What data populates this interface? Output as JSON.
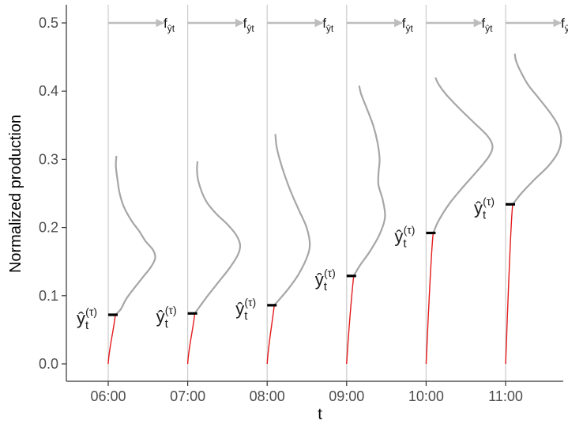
{
  "chart_data": {
    "type": "line",
    "xlabel": "t",
    "ylabel": "Normalized production",
    "xticks": [
      "06:00",
      "07:00",
      "08:00",
      "09:00",
      "10:00",
      "11:00"
    ],
    "yticks": [
      "0.0",
      "0.1",
      "0.2",
      "0.3",
      "0.4",
      "0.5"
    ],
    "ylim": [
      -0.02,
      0.53
    ],
    "grid": false,
    "density_label": {
      "f": "f",
      "sub": "ŷt"
    },
    "point_label": {
      "base": "ŷ",
      "sub": "t",
      "sup": "(τ)"
    },
    "colors": {
      "density": "#a6a6a6",
      "path": "#e41a1c",
      "marker": "#000000",
      "vline": "#cccccc",
      "arrow": "#bdbdbd"
    },
    "panels": [
      {
        "time": "06:00",
        "point": 0.072,
        "density": [
          [
            0.072,
            0.0
          ],
          [
            0.08,
            0.05
          ],
          [
            0.095,
            0.1
          ],
          [
            0.112,
            0.18
          ],
          [
            0.128,
            0.26
          ],
          [
            0.142,
            0.33
          ],
          [
            0.155,
            0.37
          ],
          [
            0.167,
            0.35
          ],
          [
            0.18,
            0.28
          ],
          [
            0.195,
            0.22
          ],
          [
            0.21,
            0.15
          ],
          [
            0.23,
            0.08
          ],
          [
            0.25,
            0.04
          ],
          [
            0.27,
            0.02
          ],
          [
            0.29,
            0.005
          ],
          [
            0.305,
            0.01
          ]
        ]
      },
      {
        "time": "07:00",
        "point": 0.074,
        "density": [
          [
            0.074,
            0.0
          ],
          [
            0.085,
            0.05
          ],
          [
            0.1,
            0.12
          ],
          [
            0.12,
            0.22
          ],
          [
            0.14,
            0.32
          ],
          [
            0.16,
            0.4
          ],
          [
            0.175,
            0.42
          ],
          [
            0.19,
            0.38
          ],
          [
            0.205,
            0.3
          ],
          [
            0.22,
            0.2
          ],
          [
            0.235,
            0.12
          ],
          [
            0.25,
            0.07
          ],
          [
            0.27,
            0.03
          ],
          [
            0.285,
            0.02
          ],
          [
            0.297,
            0.025
          ]
        ]
      },
      {
        "time": "08:00",
        "point": 0.086,
        "density": [
          [
            0.086,
            0.0
          ],
          [
            0.095,
            0.05
          ],
          [
            0.11,
            0.13
          ],
          [
            0.13,
            0.22
          ],
          [
            0.155,
            0.3
          ],
          [
            0.175,
            0.33
          ],
          [
            0.2,
            0.3
          ],
          [
            0.225,
            0.23
          ],
          [
            0.25,
            0.16
          ],
          [
            0.275,
            0.1
          ],
          [
            0.3,
            0.05
          ],
          [
            0.32,
            0.02
          ],
          [
            0.337,
            0.01
          ]
        ]
      },
      {
        "time": "09:00",
        "point": 0.129,
        "density": [
          [
            0.129,
            0.0
          ],
          [
            0.145,
            0.06
          ],
          [
            0.165,
            0.15
          ],
          [
            0.19,
            0.24
          ],
          [
            0.215,
            0.29
          ],
          [
            0.24,
            0.27
          ],
          [
            0.262,
            0.23
          ],
          [
            0.28,
            0.23
          ],
          [
            0.3,
            0.24
          ],
          [
            0.325,
            0.22
          ],
          [
            0.35,
            0.18
          ],
          [
            0.375,
            0.12
          ],
          [
            0.395,
            0.07
          ],
          [
            0.408,
            0.05
          ]
        ]
      },
      {
        "time": "10:00",
        "point": 0.192,
        "density": [
          [
            0.192,
            0.0
          ],
          [
            0.21,
            0.05
          ],
          [
            0.235,
            0.15
          ],
          [
            0.26,
            0.28
          ],
          [
            0.285,
            0.42
          ],
          [
            0.305,
            0.52
          ],
          [
            0.32,
            0.55
          ],
          [
            0.335,
            0.5
          ],
          [
            0.355,
            0.37
          ],
          [
            0.375,
            0.24
          ],
          [
            0.395,
            0.12
          ],
          [
            0.41,
            0.05
          ],
          [
            0.42,
            0.02
          ]
        ]
      },
      {
        "time": "11:00",
        "point": 0.234,
        "density": [
          [
            0.234,
            0.0
          ],
          [
            0.25,
            0.08
          ],
          [
            0.27,
            0.2
          ],
          [
            0.29,
            0.33
          ],
          [
            0.31,
            0.42
          ],
          [
            0.33,
            0.45
          ],
          [
            0.35,
            0.42
          ],
          [
            0.37,
            0.34
          ],
          [
            0.39,
            0.24
          ],
          [
            0.41,
            0.14
          ],
          [
            0.43,
            0.07
          ],
          [
            0.445,
            0.03
          ],
          [
            0.455,
            0.02
          ]
        ]
      }
    ]
  }
}
